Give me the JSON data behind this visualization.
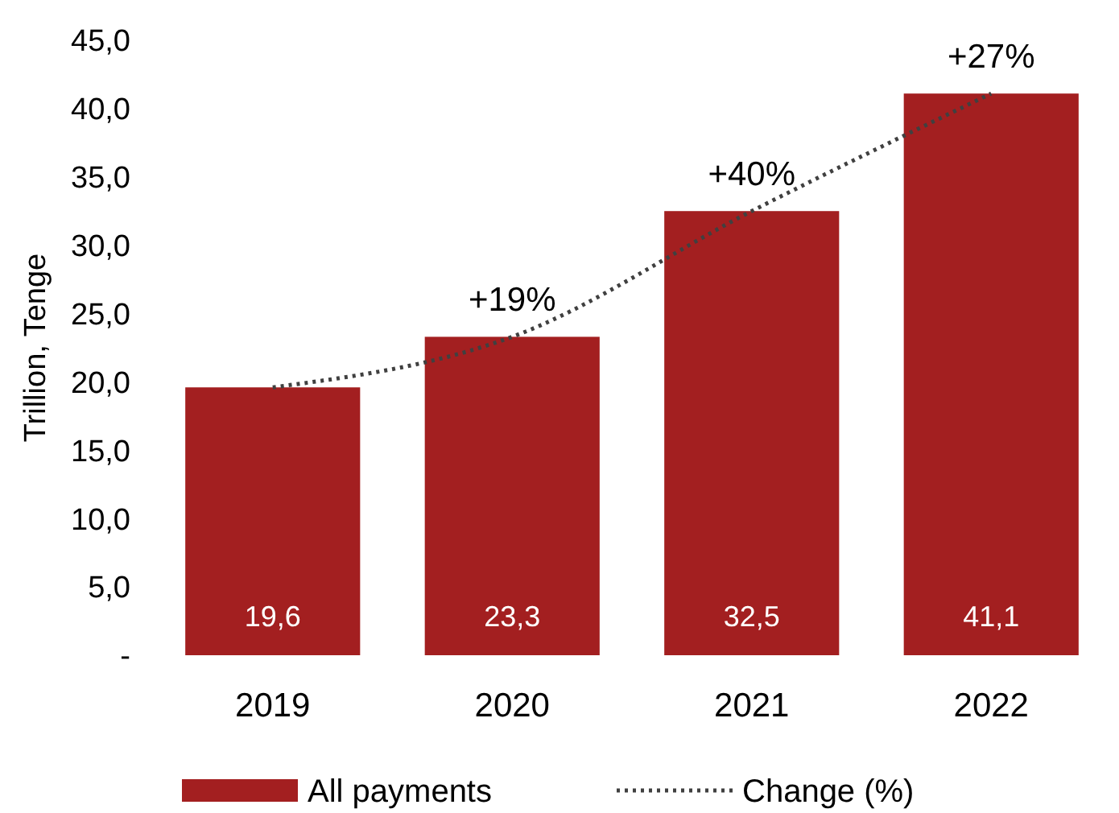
{
  "chart_data": {
    "type": "bar",
    "ylabel": "Trillion, Tenge",
    "categories": [
      "2019",
      "2020",
      "2021",
      "2022"
    ],
    "series": [
      {
        "name": "All payments",
        "color": "#a31f20",
        "values": [
          19.6,
          23.3,
          32.5,
          41.1
        ],
        "value_labels": [
          "19,6",
          "23,3",
          "32,5",
          "41,1"
        ]
      },
      {
        "name": "Change (%)",
        "type": "line",
        "color": "#404040",
        "line_style": "dotted",
        "marker": "none",
        "values": [
          19.6,
          23.3,
          32.5,
          41.1
        ]
      }
    ],
    "ylim": [
      0,
      45
    ],
    "yticks": [
      {
        "value": 0,
        "label": "-"
      },
      {
        "value": 5,
        "label": "5,0"
      },
      {
        "value": 10,
        "label": "10,0"
      },
      {
        "value": 15,
        "label": "15,0"
      },
      {
        "value": 20,
        "label": "20,0"
      },
      {
        "value": 25,
        "label": "25,0"
      },
      {
        "value": 30,
        "label": "30,0"
      },
      {
        "value": 35,
        "label": "35,0"
      },
      {
        "value": 40,
        "label": "40,0"
      },
      {
        "value": 45,
        "label": "45,0"
      }
    ],
    "annotations": [
      {
        "text": "+19%",
        "x": "2020",
        "y": 23.3
      },
      {
        "text": "+40%",
        "x": "2021",
        "y": 32.5
      },
      {
        "text": "+27%",
        "x": "2022",
        "y": 41.1
      }
    ],
    "grid": false,
    "legend": "bottom"
  }
}
